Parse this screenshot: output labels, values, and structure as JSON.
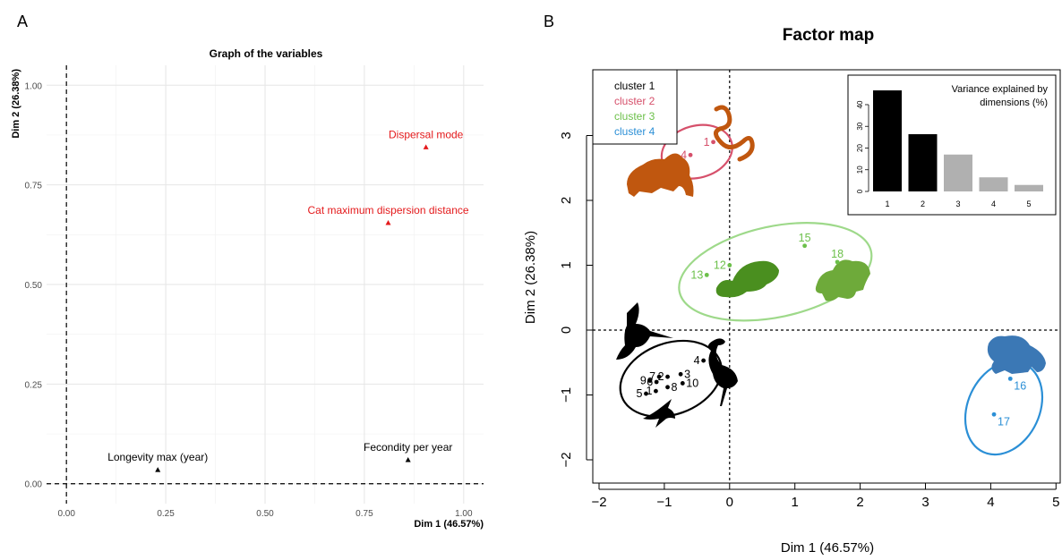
{
  "panel_a_letter": "A",
  "panel_b_letter": "B",
  "colors": {
    "red": "#e41a1c",
    "black": "#000000",
    "cluster1": "#000000",
    "cluster2": "#d6506b",
    "cluster3": "#6cc04a",
    "cluster4": "#2b8fd6",
    "orange_animal": "#c0570f",
    "green_animal": "#4a8f1f",
    "lightgreen_animal": "#6eaa3a",
    "blue_animal": "#3b78b5"
  },
  "chart_data": [
    {
      "type": "scatter",
      "title": "Graph of the variables",
      "xlabel": "Dim 1 (46.57%)",
      "ylabel": "Dim 2 (26.38%)",
      "xlim": [
        -0.05,
        1.05
      ],
      "ylim": [
        -0.05,
        1.05
      ],
      "xticks": [
        "0.00",
        "0.25",
        "0.50",
        "0.75",
        "1.00"
      ],
      "yticks": [
        "0.00",
        "0.25",
        "0.50",
        "0.75",
        "1.00"
      ],
      "grid": true,
      "points": [
        {
          "label": "Dispersal  mode",
          "x": 0.905,
          "y": 0.845,
          "color": "red"
        },
        {
          "label": "Cat maximum dispersion distance",
          "x": 0.81,
          "y": 0.655,
          "color": "red"
        },
        {
          "label": "Longevity max (year)",
          "x": 0.23,
          "y": 0.035,
          "color": "black"
        },
        {
          "label": "Fecondity per year",
          "x": 0.86,
          "y": 0.06,
          "color": "black"
        }
      ]
    },
    {
      "type": "scatter",
      "title": "Factor map",
      "xlabel": "Dim 1 (46.57%)",
      "ylabel": "Dim 2 (26.38%)",
      "xlim": [
        -2.2,
        5.1
      ],
      "ylim": [
        -2.4,
        4.0
      ],
      "xticks": [
        "−2",
        "−1",
        "0",
        "1",
        "2",
        "3",
        "4",
        "5"
      ],
      "yticks": [
        "−2",
        "−1",
        "0",
        "1",
        "2",
        "3"
      ],
      "legend": {
        "placement": "top-left",
        "entries": [
          {
            "name": "cluster 1",
            "color": "cluster1"
          },
          {
            "name": "cluster 2",
            "color": "cluster2"
          },
          {
            "name": "cluster 3",
            "color": "cluster3"
          },
          {
            "name": "cluster 4",
            "color": "cluster4"
          }
        ]
      },
      "points": [
        {
          "id": "1",
          "x": -0.25,
          "y": 2.9,
          "cluster": 2
        },
        {
          "id": "4",
          "x": -0.6,
          "y": 2.7,
          "cluster": 2
        },
        {
          "id": "12",
          "x": 0.0,
          "y": 1.0,
          "cluster": 3
        },
        {
          "id": "13",
          "x": -0.35,
          "y": 0.85,
          "cluster": 3
        },
        {
          "id": "15",
          "x": 1.15,
          "y": 1.3,
          "cluster": 3
        },
        {
          "id": "18",
          "x": 1.65,
          "y": 1.05,
          "cluster": 3
        },
        {
          "id": "16",
          "x": 4.3,
          "y": -0.75,
          "cluster": 4
        },
        {
          "id": "17",
          "x": 4.05,
          "y": -1.3,
          "cluster": 4
        },
        {
          "id": "4",
          "x": -0.4,
          "y": -0.47,
          "cluster": 1
        },
        {
          "id": "3",
          "x": -0.75,
          "y": -0.68,
          "cluster": 1
        },
        {
          "id": "7",
          "x": -1.08,
          "y": -0.72,
          "cluster": 1
        },
        {
          "id": "2",
          "x": -0.95,
          "y": -0.72,
          "cluster": 1
        },
        {
          "id": "9",
          "x": -1.22,
          "y": -0.78,
          "cluster": 1
        },
        {
          "id": "6",
          "x": -1.12,
          "y": -0.8,
          "cluster": 1
        },
        {
          "id": "10",
          "x": -0.72,
          "y": -0.82,
          "cluster": 1
        },
        {
          "id": "8",
          "x": -0.95,
          "y": -0.88,
          "cluster": 1
        },
        {
          "id": "1",
          "x": -1.13,
          "y": -0.94,
          "cluster": 1
        },
        {
          "id": "5",
          "x": -1.28,
          "y": -0.98,
          "cluster": 1
        }
      ],
      "ellipses": [
        {
          "cluster": 2,
          "cx": -0.5,
          "cy": 2.75,
          "rx": 0.55,
          "ry": 0.4,
          "rotate": -15
        },
        {
          "cluster": 3,
          "cx": 0.7,
          "cy": 0.9,
          "rx": 1.5,
          "ry": 0.7,
          "rotate": -12
        },
        {
          "cluster": 1,
          "cx": -0.9,
          "cy": -0.75,
          "rx": 0.8,
          "ry": 0.55,
          "rotate": -20
        },
        {
          "cluster": 4,
          "cx": 4.2,
          "cy": -1.2,
          "rx": 0.55,
          "ry": 0.75,
          "rotate": 25
        }
      ]
    },
    {
      "type": "bar",
      "title": "Variance explained by dimensions (%)",
      "categories": [
        "1",
        "2",
        "3",
        "4",
        "5"
      ],
      "values": [
        46.57,
        26.38,
        17.0,
        6.5,
        3.0
      ],
      "ylim": [
        0,
        47
      ],
      "yticks": [
        "0",
        "10",
        "20",
        "30",
        "40"
      ],
      "bar_colors": [
        "#000000",
        "#000000",
        "#b0b0b0",
        "#b0b0b0",
        "#b0b0b0"
      ]
    }
  ]
}
